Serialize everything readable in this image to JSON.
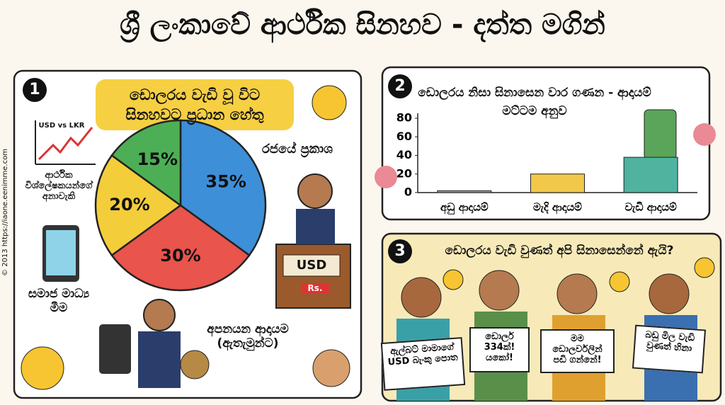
{
  "title": "ශ්‍රී ලංකාවේ ආර්ථික සිනහව - දත්ත මගින්",
  "watermark": "© 2013 https://iaone.eenimme.com",
  "chart_data": [
    {
      "type": "pie",
      "number": "1",
      "title": "ඩොලරය වැඩි වූ විට සිනහවට ප්‍රධාන හේතු",
      "categories": [
        "රජයේ ප්‍රකාශ",
        "අපනයන ආදායම (ඇතැමුන්ට)",
        "සමාජ මාධ්‍ය මීම",
        "ආර්ථික විශ්ලේෂකයන්ගේ අනාවැකි"
      ],
      "values": [
        35,
        30,
        20,
        15
      ],
      "value_labels": [
        "35%",
        "30%",
        "20%",
        "15%"
      ],
      "colors": [
        "#3d8fd8",
        "#e9544c",
        "#f4cd3a",
        "#4caf55"
      ],
      "annotations": [
        "USD vs LKR",
        "USD",
        "Rs."
      ]
    },
    {
      "type": "bar",
      "number": "2",
      "title": "ඩොලරය නිසා සිනාසෙන වාර ගණන - ආදායම් මට්ටම අනුව",
      "categories": [
        "අඩු ආදායම්",
        "මැදි ආදායම්",
        "වැඩි ආදායම්"
      ],
      "values": [
        2,
        20,
        38
      ],
      "colors": [
        "#9aa0a6",
        "#f2c84b",
        "#4fb3a0"
      ],
      "ylim": [
        0,
        80
      ],
      "yticks": [
        0,
        20,
        40,
        60,
        80
      ]
    }
  ],
  "panel3": {
    "number": "3",
    "title": "ඩොලරය වැඩි වුණත් අපි සිනාසෙන්නේ ඇයි?",
    "signs": [
      "ඇල්බට් මාමාගේ USD බැංකු පොත",
      "ඩොලර් 334ක්! යකෝ!",
      "මම ඩොලර්වලින් පඩි ගන්නේ!",
      "බඩු මිල වැඩි වුණත් හිනා"
    ]
  }
}
